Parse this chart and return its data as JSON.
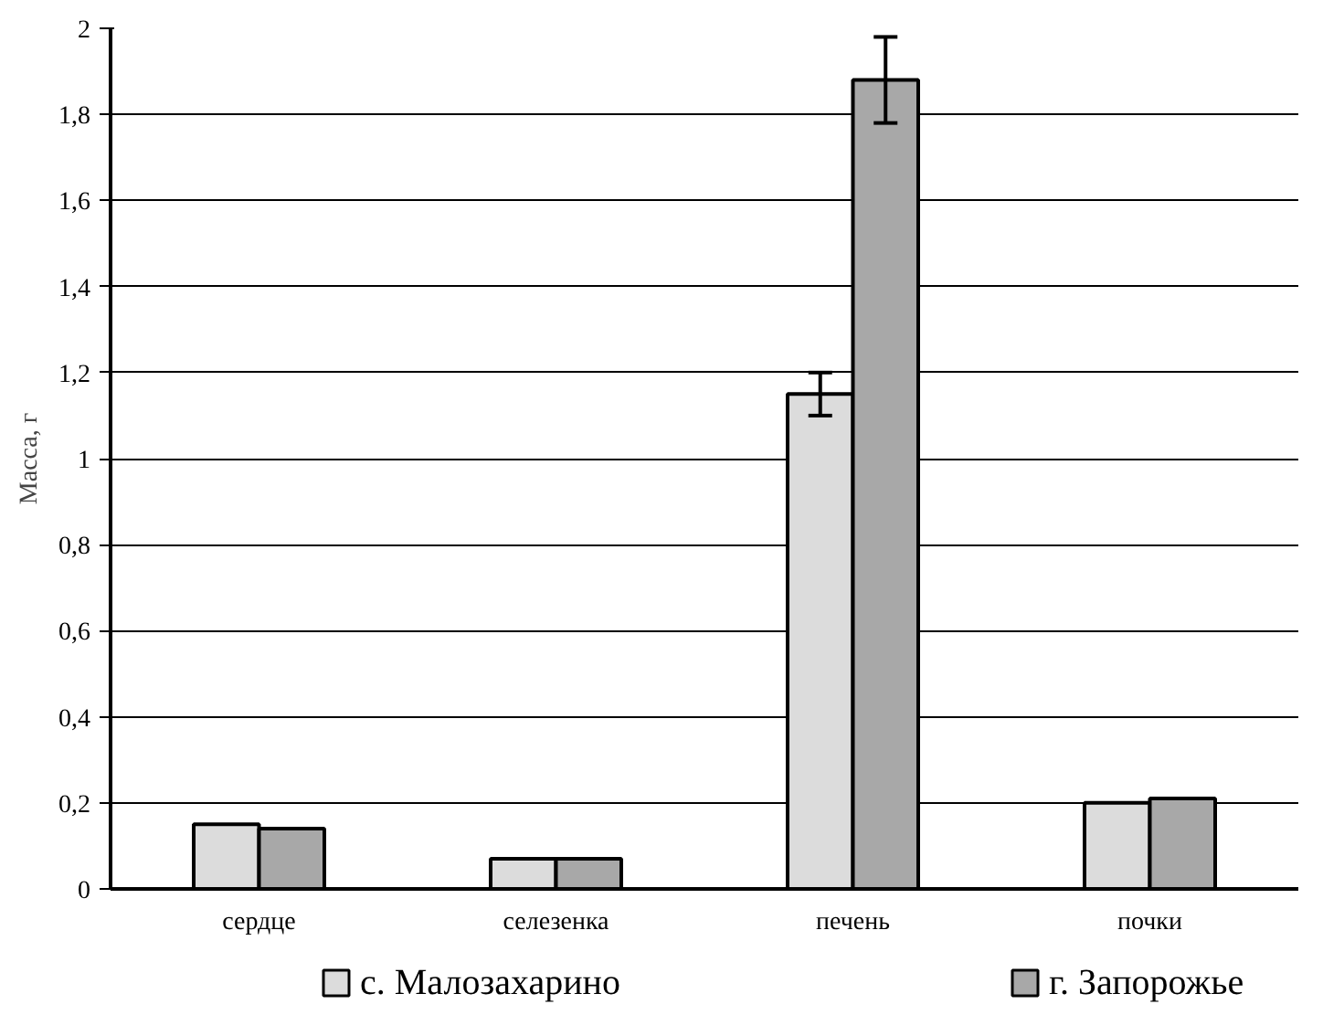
{
  "chart_data": {
    "type": "bar",
    "ylabel": "Масса, г",
    "categories": [
      "сердце",
      "селезенка",
      "печень",
      "почки"
    ],
    "series": [
      {
        "name": "с. Малозахарино",
        "color": "#dcdcdc",
        "values": [
          0.15,
          0.07,
          1.15,
          0.2
        ],
        "errors": [
          null,
          null,
          0.05,
          null
        ]
      },
      {
        "name": "г. Запорожье",
        "color": "#a8a8a8",
        "values": [
          0.14,
          0.07,
          1.88,
          0.21
        ],
        "errors": [
          null,
          null,
          0.1,
          null
        ]
      }
    ],
    "ylim": [
      0,
      2
    ],
    "yticks": [
      0,
      {
        "value": 0.2,
        "label": "0,2"
      },
      {
        "value": 0.4,
        "label": "0,4"
      },
      {
        "value": 0.6,
        "label": "0,6"
      },
      {
        "value": 0.8,
        "label": "0,8"
      },
      1,
      {
        "value": 1.2,
        "label": "1,2"
      },
      {
        "value": 1.4,
        "label": "1,4"
      },
      {
        "value": 1.6,
        "label": "1,6"
      },
      {
        "value": 1.8,
        "label": "1,8"
      },
      2
    ],
    "grid": "y",
    "legend": "bottom"
  }
}
